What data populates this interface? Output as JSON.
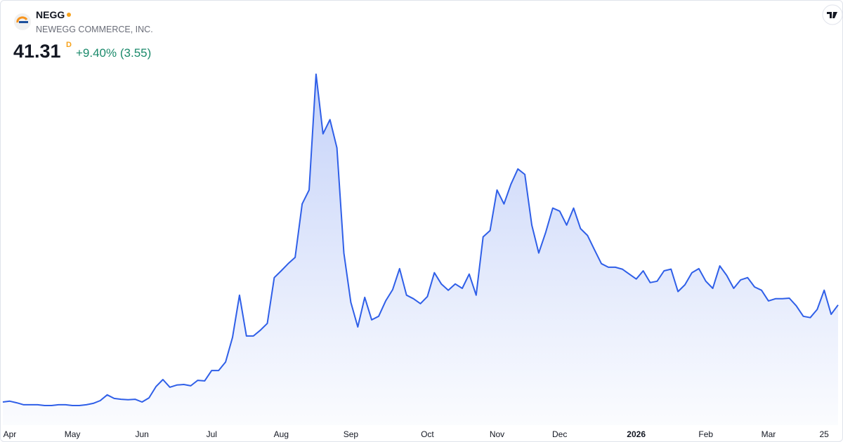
{
  "header": {
    "symbol": "NEGG",
    "company": "NEWEGG COMMERCE, INC.",
    "price": 41.31,
    "interval": "D",
    "change": "+9.40% (3.55)"
  },
  "chart_data": {
    "type": "area",
    "color": "#2f5fe8",
    "categories": [
      null,
      "Apr",
      null,
      null,
      null,
      null,
      null,
      null,
      null,
      null,
      "May",
      null,
      null,
      null,
      null,
      null,
      null,
      null,
      null,
      null,
      "Jun",
      null,
      null,
      null,
      null,
      null,
      null,
      null,
      null,
      null,
      "Jul",
      null,
      null,
      null,
      null,
      null,
      null,
      null,
      null,
      null,
      "Aug",
      null,
      null,
      null,
      null,
      null,
      null,
      null,
      null,
      null,
      "Sep",
      null,
      null,
      null,
      null,
      null,
      null,
      null,
      null,
      null,
      null,
      "Oct",
      null,
      null,
      null,
      null,
      null,
      null,
      null,
      null,
      null,
      "Nov",
      null,
      null,
      null,
      null,
      null,
      null,
      null,
      null,
      "Dec",
      null,
      null,
      null,
      null,
      null,
      null,
      null,
      null,
      null,
      null,
      "2026",
      null,
      null,
      null,
      null,
      null,
      null,
      null,
      null,
      null,
      "Feb",
      null,
      null,
      null,
      null,
      null,
      null,
      null,
      null,
      "Mar",
      null,
      null,
      null,
      null,
      null,
      null,
      null,
      "25",
      null,
      null
    ],
    "values": [
      5.9,
      6.2,
      5.6,
      4.9,
      4.9,
      4.9,
      4.6,
      4.6,
      4.9,
      4.9,
      4.6,
      4.6,
      4.9,
      5.4,
      6.4,
      8.5,
      7.2,
      6.9,
      6.7,
      6.9,
      5.9,
      7.4,
      11.5,
      14.1,
      11.3,
      12.1,
      12.3,
      11.8,
      13.8,
      13.6,
      17.4,
      17.4,
      20.5,
      29.5,
      44.9,
      30.0,
      30.0,
      32.1,
      34.6,
      51.3,
      53.8,
      56.4,
      58.7,
      78.2,
      83.3,
      125.6,
      103.8,
      109.0,
      98.7,
      60.3,
      42.3,
      33.3,
      44.1,
      35.9,
      37.2,
      42.8,
      46.9,
      54.6,
      44.9,
      43.6,
      41.8,
      44.4,
      53.1,
      49.0,
      46.7,
      49.0,
      47.4,
      52.6,
      44.9,
      66.2,
      68.5,
      83.3,
      78.2,
      85.4,
      91.0,
      89.0,
      70.5,
      60.3,
      67.9,
      76.7,
      75.6,
      70.5,
      76.7,
      69.2,
      66.7,
      61.5,
      56.4,
      55.1,
      55.1,
      54.4,
      52.6,
      50.8,
      53.8,
      49.5,
      50.0,
      53.8,
      54.4,
      46.2,
      48.7,
      53.1,
      54.6,
      50.0,
      47.4,
      55.6,
      52.1,
      47.4,
      50.5,
      51.3,
      47.9,
      46.7,
      42.8,
      43.6,
      43.6,
      43.8,
      41.0,
      37.2,
      36.7,
      39.7,
      46.7,
      37.9,
      41.31
    ],
    "ylim": [
      0,
      135
    ]
  }
}
